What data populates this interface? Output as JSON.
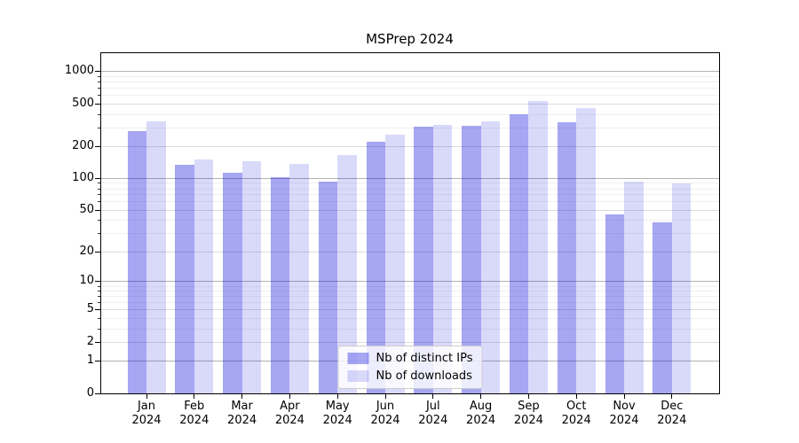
{
  "chart_data": {
    "type": "bar",
    "title": "MSPrep 2024",
    "x": [
      "Jan",
      "Feb",
      "Mar",
      "Apr",
      "May",
      "Jun",
      "Jul",
      "Aug",
      "Sep",
      "Oct",
      "Nov",
      "Dec"
    ],
    "x_year": "2024",
    "series": [
      {
        "name": "Nb of distinct IPs",
        "color": "#a6a6f3",
        "fill": "rgba(0,0,220,0.35)",
        "values": [
          277,
          135,
          113,
          103,
          94,
          220,
          305,
          313,
          397,
          340,
          46,
          38
        ]
      },
      {
        "name": "Nb of downloads",
        "color": "#d9d9fa",
        "fill": "rgba(0,0,220,0.15)",
        "values": [
          345,
          150,
          146,
          137,
          165,
          260,
          320,
          345,
          537,
          460,
          93,
          90
        ]
      }
    ],
    "y_scale": "log1p",
    "ylim": [
      0,
      1490
    ],
    "y_ticks": [
      0,
      1,
      2,
      5,
      10,
      20,
      50,
      100,
      200,
      500,
      1000
    ],
    "y_minor_ticks": [
      3,
      4,
      6,
      7,
      8,
      9,
      30,
      40,
      60,
      70,
      80,
      90,
      300,
      400,
      600,
      700,
      800,
      900
    ],
    "emphasized_gridlines": [
      1,
      10,
      100,
      1000
    ],
    "grid": true,
    "legend_position": "lower center"
  },
  "colors": {
    "spine": "#000000",
    "grid_emphasized": "#b2b2b2",
    "grid_major": "#dcdcdc",
    "grid_minor": "#f0f0f0",
    "background": "#ffffff"
  }
}
